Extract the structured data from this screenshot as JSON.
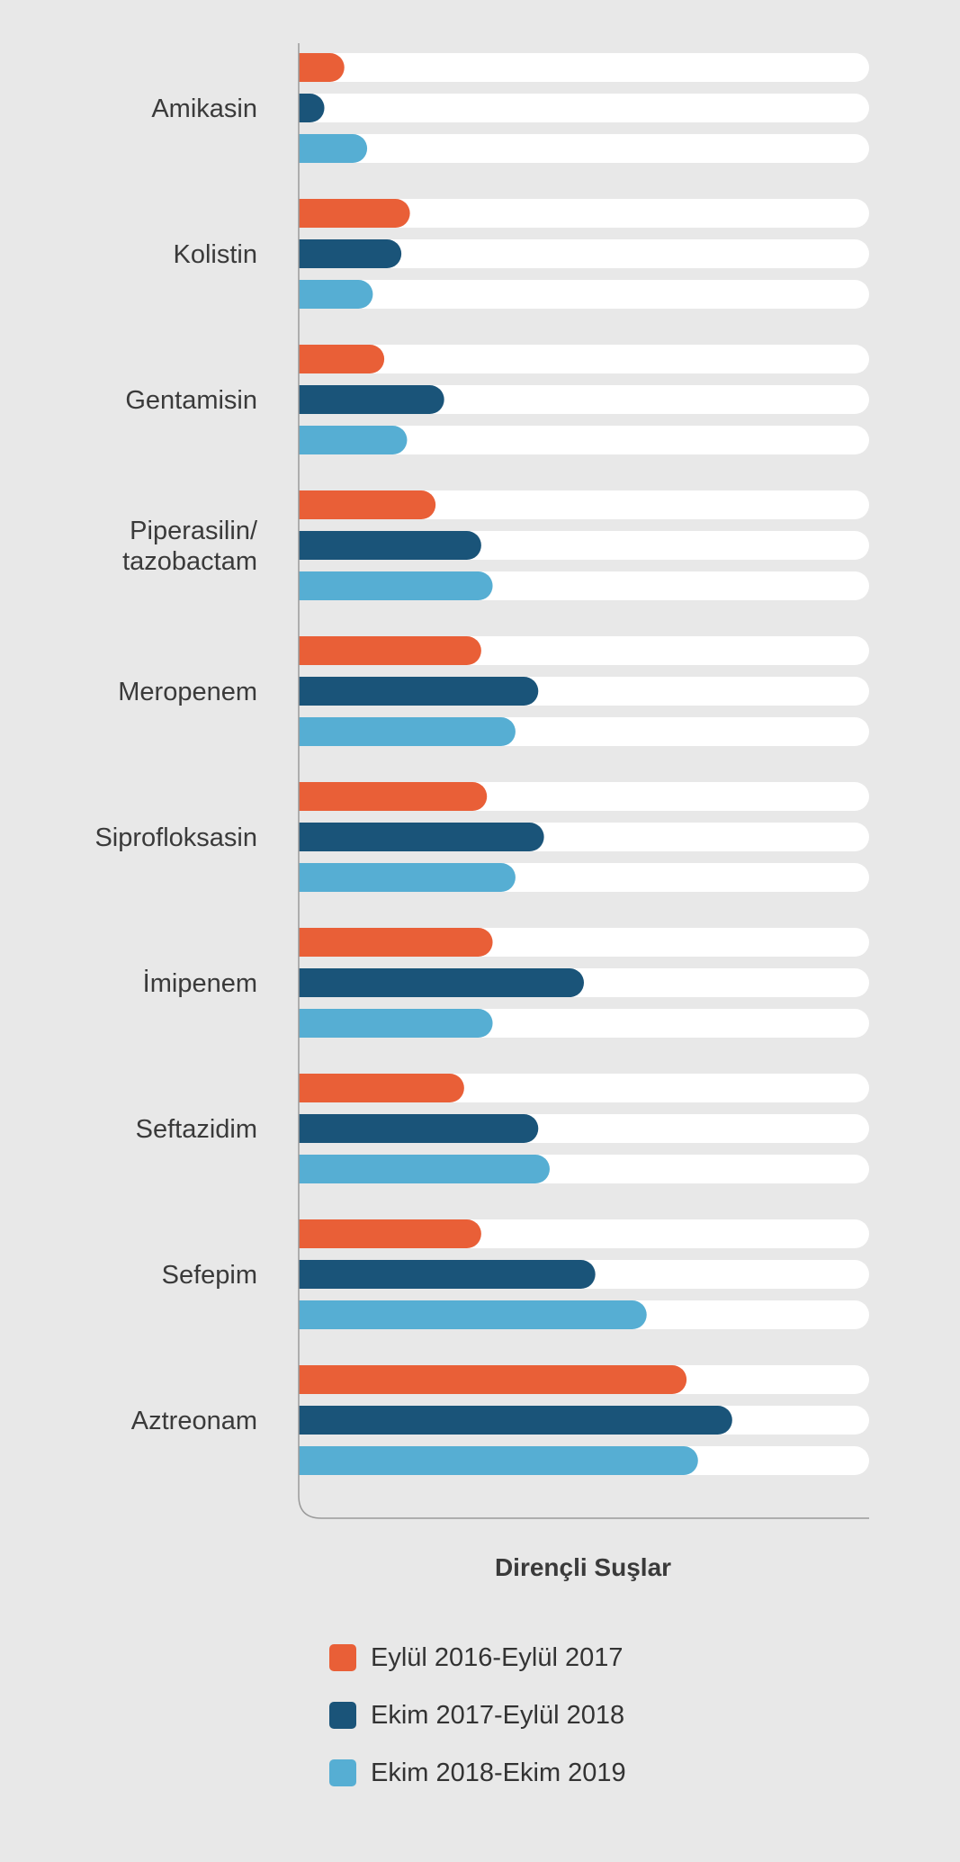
{
  "chart_data": {
    "type": "bar",
    "orientation": "horizontal",
    "categories": [
      "Amikasin",
      "Kolistin",
      "Gentamisin",
      "Piperasilin/\ntazobactam",
      "Meropenem",
      "Siprofloksasin",
      "İmipenem",
      "Seftazidim",
      "Sefepim",
      "Aztreonam"
    ],
    "series": [
      {
        "name": "Eylül 2016-Eylül 2017",
        "color": "#e95f37",
        "values": [
          8,
          19.5,
          15,
          24,
          32,
          33,
          34,
          29,
          32,
          68
        ]
      },
      {
        "name": "Ekim 2017-Eylül 2018",
        "color": "#1a5479",
        "values": [
          4.5,
          18,
          25.5,
          32,
          42,
          43,
          50,
          42,
          52,
          76
        ]
      },
      {
        "name": "Ekim 2018-Ekim 2019",
        "color": "#56aed3",
        "values": [
          12,
          13,
          19,
          34,
          38,
          38,
          34,
          44,
          61,
          70
        ]
      }
    ],
    "xlabel": "Dirençli Suşlar",
    "ylabel": "",
    "xlim": [
      0,
      100
    ],
    "track_color": "#ffffff",
    "axis_color": "#9a9a9a",
    "background": "#e8e8e8",
    "grid": false,
    "legend_position": "bottom"
  }
}
